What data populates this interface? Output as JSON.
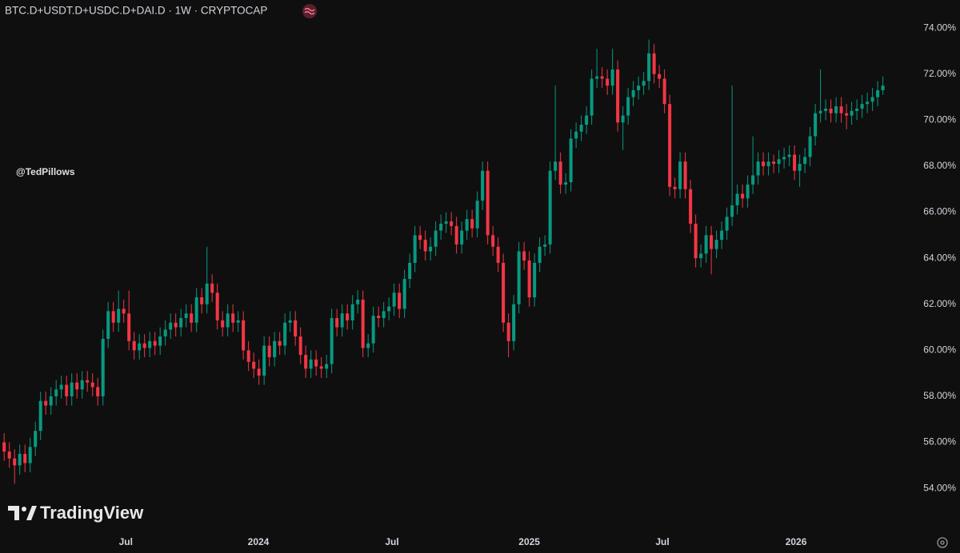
{
  "chart_data": {
    "type": "candlestick",
    "title": "BTC.D+USDT.D+USDC.D+DAI.D · 1W · CRYPTOCAP",
    "watermark": "@TedPillows",
    "brand": "TradingView",
    "up_color": "#089981",
    "down_color": "#f23645",
    "xlim": [
      -0.8,
      174.6
    ],
    "xticks": [
      {
        "value": 23.4,
        "label": "Jul"
      },
      {
        "value": 48.9,
        "label": "2024"
      },
      {
        "value": 74.6,
        "label": "Jul"
      },
      {
        "value": 101,
        "label": "2025"
      },
      {
        "value": 126.6,
        "label": "Jul"
      },
      {
        "value": 152.3,
        "label": "2026"
      }
    ],
    "ylim": [
      52.13,
      75.22
    ],
    "yticks": [
      {
        "value": 54,
        "label": "54.00%"
      },
      {
        "value": 56,
        "label": "56.00%"
      },
      {
        "value": 58,
        "label": "58.00%"
      },
      {
        "value": 60,
        "label": "60.00%"
      },
      {
        "value": 62,
        "label": "62.00%"
      },
      {
        "value": 64,
        "label": "64.00%"
      },
      {
        "value": 66,
        "label": "66.00%"
      },
      {
        "value": 68,
        "label": "68.00%"
      },
      {
        "value": 70,
        "label": "70.00%"
      },
      {
        "value": 72,
        "label": "72.00%"
      },
      {
        "value": 74,
        "label": "74.00%"
      }
    ],
    "open": [
      56.0,
      55.6,
      55.3,
      55.0,
      55.5,
      55.1,
      55.8,
      56.5,
      57.8,
      57.6,
      58.0,
      58.3,
      58.5,
      58.0,
      58.6,
      58.3,
      58.7,
      58.6,
      58.4,
      58.0,
      60.5,
      61.7,
      61.2,
      61.8,
      61.6,
      60.4,
      60.0,
      60.3,
      60.1,
      60.4,
      60.2,
      60.6,
      60.9,
      61.2,
      61.0,
      61.4,
      61.6,
      61.2,
      62.3,
      62.0,
      62.9,
      62.5,
      61.3,
      61.0,
      61.6,
      61.2,
      61.3,
      60.0,
      59.5,
      59.2,
      58.9,
      60.2,
      59.7,
      60.4,
      60.2,
      61.2,
      61.3,
      60.6,
      59.8,
      59.2,
      59.6,
      59.3,
      59.2,
      59.4,
      61.4,
      61.0,
      61.6,
      61.3,
      62.0,
      62.2,
      60.1,
      60.3,
      61.5,
      61.4,
      61.7,
      61.9,
      62.5,
      61.8,
      63.1,
      63.8,
      65.0,
      64.8,
      64.3,
      64.5,
      65.2,
      65.5,
      65.6,
      65.4,
      64.6,
      65.2,
      65.7,
      65.3,
      66.5,
      67.8,
      65.0,
      64.5,
      63.8,
      61.2,
      60.4,
      62.0,
      64.3,
      63.9,
      62.3,
      63.8,
      64.5,
      64.6,
      67.8,
      68.2,
      67.2,
      67.3,
      69.2,
      69.5,
      69.8,
      70.2,
      71.8,
      71.9,
      71.8,
      71.5,
      72.2,
      69.9,
      70.2,
      71.0,
      71.3,
      71.5,
      71.7,
      72.9,
      72.0,
      71.8,
      70.7,
      67.1,
      67.0,
      68.2,
      67.0,
      65.5,
      64.0,
      64.2,
      65.0,
      64.4,
      64.8,
      65.2,
      65.8,
      66.3,
      66.8,
      66.6,
      67.2,
      67.6,
      68.2,
      68.0,
      68.2,
      68.1,
      68.3,
      68.4,
      68.5,
      67.8,
      68.1,
      68.4,
      69.3,
      70.3,
      70.4,
      70.5,
      70.3,
      70.6,
      70.3,
      70.2,
      70.4,
      70.5,
      70.7,
      70.8,
      71.0,
      71.3
    ],
    "high": [
      56.4,
      56.0,
      55.7,
      55.9,
      55.9,
      56.2,
      56.9,
      58.2,
      58.2,
      58.4,
      58.7,
      58.9,
      58.9,
      59.0,
      59.0,
      59.1,
      59.1,
      59.0,
      58.8,
      60.9,
      62.1,
      62.1,
      62.6,
      62.2,
      62.6,
      60.8,
      60.7,
      60.7,
      60.8,
      60.8,
      61.0,
      61.3,
      61.6,
      61.6,
      61.8,
      62.0,
      62.0,
      62.7,
      62.7,
      64.5,
      63.3,
      62.9,
      61.7,
      62.0,
      62.0,
      61.7,
      61.7,
      60.4,
      59.9,
      59.6,
      60.6,
      60.6,
      60.8,
      60.8,
      61.6,
      61.7,
      61.7,
      61.0,
      60.2,
      60.0,
      60.0,
      59.7,
      59.8,
      61.8,
      61.8,
      62.0,
      62.0,
      62.4,
      62.6,
      62.6,
      60.7,
      61.9,
      61.9,
      62.1,
      62.3,
      62.9,
      62.9,
      63.5,
      64.2,
      65.4,
      65.4,
      65.2,
      64.9,
      65.6,
      65.9,
      66.0,
      66.0,
      65.8,
      65.6,
      66.1,
      66.1,
      66.9,
      68.2,
      68.2,
      65.4,
      64.9,
      64.2,
      61.6,
      62.4,
      64.7,
      64.7,
      64.3,
      64.2,
      64.9,
      65.0,
      68.2,
      71.5,
      68.6,
      67.7,
      69.6,
      69.9,
      70.2,
      70.6,
      72.2,
      73.1,
      72.3,
      72.2,
      73.1,
      72.6,
      70.6,
      71.4,
      71.7,
      71.9,
      72.1,
      73.5,
      73.3,
      72.4,
      72.2,
      71.1,
      67.5,
      68.6,
      68.6,
      67.4,
      65.9,
      64.6,
      65.4,
      65.4,
      65.2,
      65.6,
      66.2,
      71.5,
      67.2,
      67.2,
      67.6,
      69.3,
      68.6,
      68.6,
      68.6,
      68.5,
      68.7,
      68.8,
      68.9,
      68.9,
      68.5,
      68.8,
      69.7,
      70.7,
      72.2,
      70.9,
      70.9,
      71.0,
      71.0,
      70.7,
      70.8,
      70.9,
      71.1,
      71.2,
      71.4,
      71.7,
      71.9
    ],
    "low": [
      55.2,
      54.9,
      54.2,
      54.6,
      54.7,
      54.7,
      55.4,
      56.1,
      57.2,
      57.2,
      57.6,
      57.9,
      57.6,
      57.6,
      57.9,
      57.9,
      58.2,
      58.0,
      57.6,
      57.6,
      60.1,
      60.8,
      60.8,
      61.2,
      60.0,
      59.6,
      59.6,
      59.7,
      59.7,
      59.8,
      59.8,
      60.2,
      60.5,
      60.6,
      60.6,
      61.0,
      60.8,
      60.8,
      61.6,
      61.6,
      62.1,
      60.9,
      60.6,
      60.6,
      60.8,
      60.8,
      59.6,
      59.1,
      58.8,
      58.5,
      58.5,
      59.3,
      59.3,
      59.8,
      59.8,
      60.8,
      60.2,
      59.4,
      58.8,
      58.8,
      58.9,
      58.8,
      58.8,
      59.0,
      60.6,
      60.6,
      60.9,
      60.9,
      61.6,
      59.7,
      59.7,
      59.9,
      61.0,
      61.0,
      61.3,
      61.5,
      61.4,
      61.4,
      62.7,
      63.4,
      64.4,
      63.9,
      63.9,
      64.1,
      64.8,
      65.1,
      65.0,
      64.2,
      64.2,
      64.8,
      64.9,
      64.9,
      66.1,
      64.6,
      64.1,
      63.4,
      60.8,
      59.7,
      60.0,
      61.6,
      63.5,
      61.9,
      61.9,
      63.4,
      64.1,
      64.2,
      67.4,
      66.8,
      66.8,
      66.9,
      68.8,
      69.1,
      69.4,
      69.8,
      71.4,
      71.4,
      71.1,
      71.1,
      69.5,
      68.7,
      69.8,
      70.6,
      70.9,
      71.1,
      71.3,
      71.6,
      71.4,
      70.3,
      66.7,
      66.6,
      66.6,
      66.6,
      65.1,
      63.6,
      63.6,
      63.8,
      63.3,
      64.0,
      64.4,
      64.8,
      65.4,
      65.9,
      66.2,
      66.2,
      66.8,
      67.2,
      67.6,
      67.6,
      67.7,
      67.7,
      67.9,
      68.0,
      67.4,
      67.1,
      67.7,
      68.0,
      68.9,
      69.9,
      70.0,
      69.9,
      69.9,
      69.9,
      69.6,
      69.8,
      70.0,
      70.1,
      70.3,
      70.4,
      70.6,
      71.1
    ],
    "close": [
      55.6,
      55.3,
      55.0,
      55.5,
      55.1,
      55.8,
      56.5,
      57.8,
      57.6,
      58.0,
      58.3,
      58.5,
      58.0,
      58.6,
      58.3,
      58.7,
      58.6,
      58.4,
      58.0,
      60.5,
      61.7,
      61.2,
      61.8,
      61.6,
      60.4,
      60.0,
      60.3,
      60.1,
      60.4,
      60.2,
      60.6,
      60.9,
      61.2,
      61.0,
      61.4,
      61.6,
      61.2,
      62.3,
      62.0,
      62.9,
      62.5,
      61.3,
      61.0,
      61.6,
      61.2,
      61.3,
      60.0,
      59.5,
      59.2,
      58.9,
      60.2,
      59.7,
      60.4,
      60.2,
      61.2,
      61.3,
      60.6,
      59.8,
      59.2,
      59.6,
      59.3,
      59.2,
      59.4,
      61.4,
      61.0,
      61.6,
      61.3,
      62.0,
      62.2,
      60.1,
      60.3,
      61.5,
      61.4,
      61.7,
      61.9,
      62.5,
      61.8,
      63.1,
      63.8,
      65.0,
      64.8,
      64.3,
      64.5,
      65.2,
      65.5,
      65.6,
      65.4,
      64.6,
      65.2,
      65.7,
      65.3,
      66.5,
      67.8,
      65.0,
      64.5,
      63.8,
      61.2,
      60.4,
      62.0,
      64.3,
      63.9,
      62.3,
      63.8,
      64.5,
      64.6,
      67.8,
      68.2,
      67.2,
      67.3,
      69.2,
      69.5,
      69.8,
      70.2,
      71.8,
      71.9,
      71.8,
      71.5,
      72.2,
      69.9,
      70.2,
      71.0,
      71.3,
      71.5,
      71.7,
      72.9,
      72.0,
      71.8,
      70.7,
      67.1,
      67.0,
      68.2,
      67.0,
      65.5,
      64.0,
      64.2,
      65.0,
      64.4,
      64.8,
      65.2,
      65.8,
      66.3,
      66.8,
      66.6,
      67.2,
      67.6,
      68.2,
      68.0,
      68.2,
      68.1,
      68.3,
      68.4,
      68.5,
      67.8,
      68.1,
      68.4,
      69.3,
      70.3,
      70.4,
      70.5,
      70.3,
      70.6,
      70.3,
      70.2,
      70.4,
      70.5,
      70.7,
      70.8,
      71.0,
      71.3,
      71.5
    ]
  }
}
